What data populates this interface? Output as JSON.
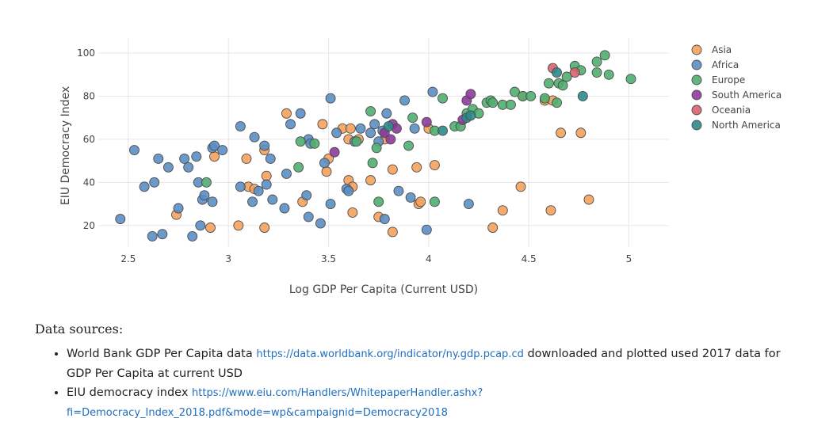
{
  "chart_data": {
    "type": "scatter",
    "xlabel": "Log GDP Per Capita (Current USD)",
    "ylabel": "EIU Democracy Index",
    "xlim": [
      2.35,
      5.2
    ],
    "ylim": [
      10,
      107
    ],
    "xticks": [
      2.5,
      3,
      3.5,
      4,
      4.5,
      5
    ],
    "xtick_labels": [
      "2.5",
      "3",
      "3.5",
      "4",
      "4.5",
      "5"
    ],
    "yticks": [
      20,
      40,
      60,
      80,
      100
    ],
    "ytick_labels": [
      "20",
      "40",
      "60",
      "80",
      "100"
    ],
    "grid": true,
    "legend_position": "right",
    "series": [
      {
        "name": "Asia",
        "color": "#f5a25d",
        "points": [
          [
            2.74,
            25
          ],
          [
            2.91,
            19
          ],
          [
            2.93,
            52
          ],
          [
            3.05,
            20
          ],
          [
            3.09,
            51
          ],
          [
            3.1,
            38
          ],
          [
            3.13,
            37
          ],
          [
            3.18,
            55
          ],
          [
            3.19,
            43
          ],
          [
            3.18,
            19
          ],
          [
            3.29,
            72
          ],
          [
            3.37,
            31
          ],
          [
            3.47,
            67
          ],
          [
            3.49,
            45
          ],
          [
            3.5,
            51
          ],
          [
            3.57,
            65
          ],
          [
            3.6,
            60
          ],
          [
            3.6,
            41
          ],
          [
            3.61,
            65
          ],
          [
            3.62,
            38
          ],
          [
            3.62,
            26
          ],
          [
            3.65,
            60
          ],
          [
            3.71,
            41
          ],
          [
            3.75,
            24
          ],
          [
            3.78,
            60
          ],
          [
            3.82,
            46
          ],
          [
            3.82,
            17
          ],
          [
            3.94,
            47
          ],
          [
            3.95,
            30
          ],
          [
            3.96,
            31
          ],
          [
            4.0,
            65
          ],
          [
            4.03,
            48
          ],
          [
            4.32,
            19
          ],
          [
            4.37,
            27
          ],
          [
            4.46,
            38
          ],
          [
            4.47,
            80
          ],
          [
            4.58,
            78
          ],
          [
            4.61,
            27
          ],
          [
            4.62,
            78
          ],
          [
            4.66,
            63
          ],
          [
            4.76,
            63
          ],
          [
            4.8,
            32
          ]
        ]
      },
      {
        "name": "Africa",
        "color": "#5b8ec4",
        "points": [
          [
            2.46,
            23
          ],
          [
            2.53,
            55
          ],
          [
            2.58,
            38
          ],
          [
            2.62,
            15
          ],
          [
            2.63,
            40
          ],
          [
            2.65,
            51
          ],
          [
            2.67,
            16
          ],
          [
            2.7,
            47
          ],
          [
            2.75,
            28
          ],
          [
            2.78,
            51
          ],
          [
            2.8,
            47
          ],
          [
            2.82,
            15
          ],
          [
            2.84,
            52
          ],
          [
            2.85,
            40
          ],
          [
            2.86,
            20
          ],
          [
            2.87,
            32
          ],
          [
            2.88,
            34
          ],
          [
            2.92,
            31
          ],
          [
            2.92,
            56
          ],
          [
            2.93,
            57
          ],
          [
            2.97,
            55
          ],
          [
            3.06,
            66
          ],
          [
            3.06,
            38
          ],
          [
            3.12,
            31
          ],
          [
            3.13,
            61
          ],
          [
            3.15,
            36
          ],
          [
            3.18,
            57
          ],
          [
            3.19,
            39
          ],
          [
            3.21,
            51
          ],
          [
            3.22,
            32
          ],
          [
            3.28,
            28
          ],
          [
            3.29,
            44
          ],
          [
            3.31,
            67
          ],
          [
            3.36,
            72
          ],
          [
            3.39,
            34
          ],
          [
            3.4,
            24
          ],
          [
            3.4,
            60
          ],
          [
            3.41,
            58
          ],
          [
            3.46,
            21
          ],
          [
            3.48,
            49
          ],
          [
            3.51,
            30
          ],
          [
            3.51,
            79
          ],
          [
            3.54,
            63
          ],
          [
            3.59,
            37
          ],
          [
            3.6,
            36
          ],
          [
            3.63,
            59
          ],
          [
            3.66,
            65
          ],
          [
            3.71,
            63
          ],
          [
            3.73,
            67
          ],
          [
            3.75,
            59
          ],
          [
            3.77,
            64
          ],
          [
            3.78,
            23
          ],
          [
            3.79,
            72
          ],
          [
            3.85,
            36
          ],
          [
            3.88,
            78
          ],
          [
            3.91,
            33
          ],
          [
            3.93,
            65
          ],
          [
            3.99,
            18
          ],
          [
            4.02,
            82
          ],
          [
            4.2,
            30
          ]
        ]
      },
      {
        "name": "Europe",
        "color": "#4fae6e",
        "points": [
          [
            2.89,
            40
          ],
          [
            3.35,
            47
          ],
          [
            3.36,
            59
          ],
          [
            3.43,
            58
          ],
          [
            3.64,
            59
          ],
          [
            3.71,
            73
          ],
          [
            3.72,
            49
          ],
          [
            3.74,
            56
          ],
          [
            3.75,
            31
          ],
          [
            3.9,
            57
          ],
          [
            3.92,
            70
          ],
          [
            4.03,
            64
          ],
          [
            4.03,
            31
          ],
          [
            4.07,
            79
          ],
          [
            4.13,
            66
          ],
          [
            4.16,
            66
          ],
          [
            4.19,
            72
          ],
          [
            4.22,
            74
          ],
          [
            4.25,
            72
          ],
          [
            4.29,
            77
          ],
          [
            4.31,
            78
          ],
          [
            4.32,
            77
          ],
          [
            4.37,
            76
          ],
          [
            4.41,
            76
          ],
          [
            4.43,
            82
          ],
          [
            4.47,
            80
          ],
          [
            4.51,
            80
          ],
          [
            4.58,
            79
          ],
          [
            4.6,
            86
          ],
          [
            4.64,
            77
          ],
          [
            4.65,
            86
          ],
          [
            4.67,
            85
          ],
          [
            4.69,
            89
          ],
          [
            4.73,
            94
          ],
          [
            4.76,
            92
          ],
          [
            4.84,
            96
          ],
          [
            4.84,
            91
          ],
          [
            4.88,
            99
          ],
          [
            4.9,
            90
          ],
          [
            5.01,
            88
          ]
        ]
      },
      {
        "name": "South America",
        "color": "#8e3a9a",
        "points": [
          [
            3.53,
            54
          ],
          [
            3.78,
            63
          ],
          [
            3.81,
            60
          ],
          [
            3.82,
            67
          ],
          [
            3.84,
            65
          ],
          [
            3.99,
            68
          ],
          [
            4.17,
            69
          ],
          [
            4.19,
            78
          ],
          [
            4.21,
            81
          ]
        ]
      },
      {
        "name": "Oceania",
        "color": "#d8606e",
        "points": [
          [
            4.62,
            93
          ],
          [
            4.73,
            91
          ]
        ]
      },
      {
        "name": "North America",
        "color": "#2d8a8a",
        "points": [
          [
            3.8,
            66
          ],
          [
            4.07,
            64
          ],
          [
            4.19,
            70
          ],
          [
            4.21,
            71
          ],
          [
            4.64,
            91
          ],
          [
            4.77,
            80
          ]
        ]
      }
    ]
  },
  "sources": {
    "heading": "Data sources:",
    "items": [
      {
        "text_before": "World Bank GDP Per Capita data ",
        "link": "https://data.worldbank.org/indicator/ny.gdp.pcap.cd",
        "text_after": " downloaded and plotted used 2017 data for GDP Per Capita at current USD"
      },
      {
        "text_before": "EIU democracy index ",
        "link": "https://www.eiu.com/Handlers/WhitepaperHandler.ashx?fi=Democracy_Index_2018.pdf&mode=wp&campaignid=Democracy2018",
        "text_after": ""
      }
    ]
  }
}
